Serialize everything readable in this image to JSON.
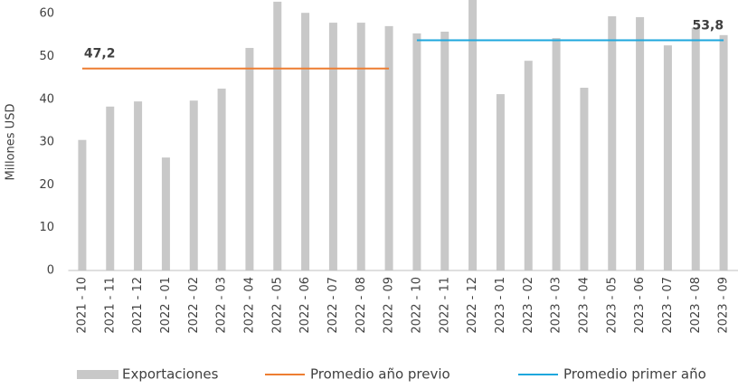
{
  "chart_data": {
    "type": "bar",
    "y_label": "Millones USD",
    "categories": [
      "2021 - 10",
      "2021 - 11",
      "2021 - 12",
      "2022 - 01",
      "2022 - 02",
      "2022 - 03",
      "2022 - 04",
      "2022 - 05",
      "2022 - 06",
      "2022 - 07",
      "2022 - 08",
      "2022 - 09",
      "2022 - 10",
      "2022 - 11",
      "2022 - 12",
      "2023 - 01",
      "2023 - 02",
      "2023 - 03",
      "2023 - 04",
      "2023 - 05",
      "2023 - 06",
      "2023 - 07",
      "2023 - 08",
      "2023 - 09"
    ],
    "series": [
      {
        "name": "Exportaciones",
        "color": "#c8c8c8",
        "values": [
          30.5,
          38.3,
          39.5,
          26.4,
          39.7,
          42.5,
          52,
          62.8,
          60.2,
          57.9,
          57.9,
          57.1,
          55.4,
          55.8,
          64,
          41.2,
          49,
          54.3,
          42.7,
          59.4,
          59.2,
          52.6,
          56.7,
          55
        ]
      },
      {
        "name": "Promedio año previo",
        "type": "line",
        "color": "#ed7d31",
        "label": "47,2",
        "values": [
          47.2,
          47.2,
          47.2,
          47.2,
          47.2,
          47.2,
          47.2,
          47.2,
          47.2,
          47.2,
          47.2,
          47.2,
          null,
          null,
          null,
          null,
          null,
          null,
          null,
          null,
          null,
          null,
          null,
          null
        ]
      },
      {
        "name": "Promedio primer año",
        "type": "line",
        "color": "#1ea7dd",
        "label": "53,8",
        "values": [
          null,
          null,
          null,
          null,
          null,
          null,
          null,
          null,
          null,
          null,
          null,
          null,
          53.8,
          53.8,
          53.8,
          53.8,
          53.8,
          53.8,
          53.8,
          53.8,
          53.8,
          53.8,
          53.8,
          53.8
        ]
      }
    ],
    "ylim": [
      0,
      63.2
    ],
    "yticks": [
      0,
      10,
      20,
      30,
      40,
      50,
      60
    ],
    "grid": false
  }
}
